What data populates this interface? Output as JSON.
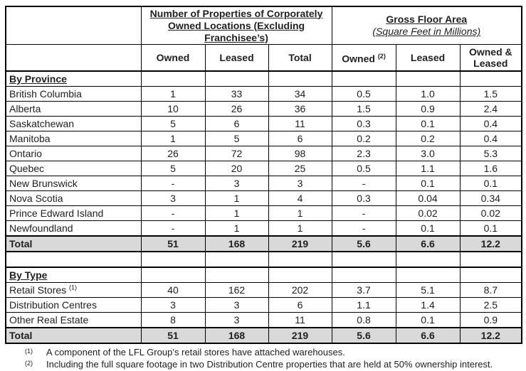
{
  "colors": {
    "total_row_bg": "#d9d9d9",
    "border": "#000000",
    "text": "#212121",
    "page_bg": "#ffffff"
  },
  "table": {
    "group_headers": {
      "properties": {
        "lines": [
          "Number of Properties of Corporately",
          "Owned Locations (Excluding",
          "Franchisee’s)"
        ]
      },
      "gross_floor_area": {
        "title": "Gross Floor Area",
        "subtitle": "(Square Feet in Millions)"
      }
    },
    "columns": [
      {
        "label": "Owned",
        "sup": ""
      },
      {
        "label": "Leased",
        "sup": ""
      },
      {
        "label": "Total",
        "sup": ""
      },
      {
        "label": "Owned",
        "sup": "(2)"
      },
      {
        "label": "Leased",
        "sup": ""
      },
      {
        "label": "Owned & Leased",
        "sup": ""
      }
    ],
    "sections": [
      {
        "title": "By Province",
        "rows": [
          {
            "label": "British Columbia",
            "sup": "",
            "values": [
              "1",
              "33",
              "34",
              "0.5",
              "1.0",
              "1.5"
            ]
          },
          {
            "label": "Alberta",
            "sup": "",
            "values": [
              "10",
              "26",
              "36",
              "1.5",
              "0.9",
              "2.4"
            ]
          },
          {
            "label": "Saskatchewan",
            "sup": "",
            "values": [
              "5",
              "6",
              "11",
              "0.3",
              "0.1",
              "0.4"
            ]
          },
          {
            "label": "Manitoba",
            "sup": "",
            "values": [
              "1",
              "5",
              "6",
              "0.2",
              "0.2",
              "0.4"
            ]
          },
          {
            "label": "Ontario",
            "sup": "",
            "values": [
              "26",
              "72",
              "98",
              "2.3",
              "3.0",
              "5.3"
            ]
          },
          {
            "label": "Quebec",
            "sup": "",
            "values": [
              "5",
              "20",
              "25",
              "0.5",
              "1.1",
              "1.6"
            ]
          },
          {
            "label": "New Brunswick",
            "sup": "",
            "values": [
              "-",
              "3",
              "3",
              "-",
              "0.1",
              "0.1"
            ]
          },
          {
            "label": "Nova Scotia",
            "sup": "",
            "values": [
              "3",
              "1",
              "4",
              "0.3",
              "0.04",
              "0.34"
            ]
          },
          {
            "label": "Prince Edward Island",
            "sup": "",
            "values": [
              "-",
              "1",
              "1",
              "-",
              "0.02",
              "0.02"
            ]
          },
          {
            "label": "Newfoundland",
            "sup": "",
            "values": [
              "-",
              "1",
              "1",
              "-",
              "0.1",
              "0.1"
            ]
          }
        ],
        "total": {
          "label": "Total",
          "sup": "",
          "values": [
            "51",
            "168",
            "219",
            "5.6",
            "6.6",
            "12.2"
          ]
        }
      },
      {
        "title": "By Type",
        "rows": [
          {
            "label": "Retail Stores",
            "sup": "(1)",
            "values": [
              "40",
              "162",
              "202",
              "3.7",
              "5.1",
              "8.7"
            ]
          },
          {
            "label": "Distribution Centres",
            "sup": "",
            "values": [
              "3",
              "3",
              "6",
              "1.1",
              "1.4",
              "2.5"
            ]
          },
          {
            "label": "Other Real Estate",
            "sup": "",
            "values": [
              "8",
              "3",
              "11",
              "0.8",
              "0.1",
              "0.9"
            ]
          }
        ],
        "total": {
          "label": "Total",
          "sup": "",
          "values": [
            "51",
            "168",
            "219",
            "5.6",
            "6.6",
            "12.2"
          ]
        }
      }
    ]
  },
  "footnotes": [
    {
      "marker": "(1)",
      "text": "A component of the LFL Group’s retail stores have attached warehouses."
    },
    {
      "marker": "(2)",
      "text": "Including the full square footage in two Distribution Centre properties that are held at 50% ownership interest."
    }
  ]
}
